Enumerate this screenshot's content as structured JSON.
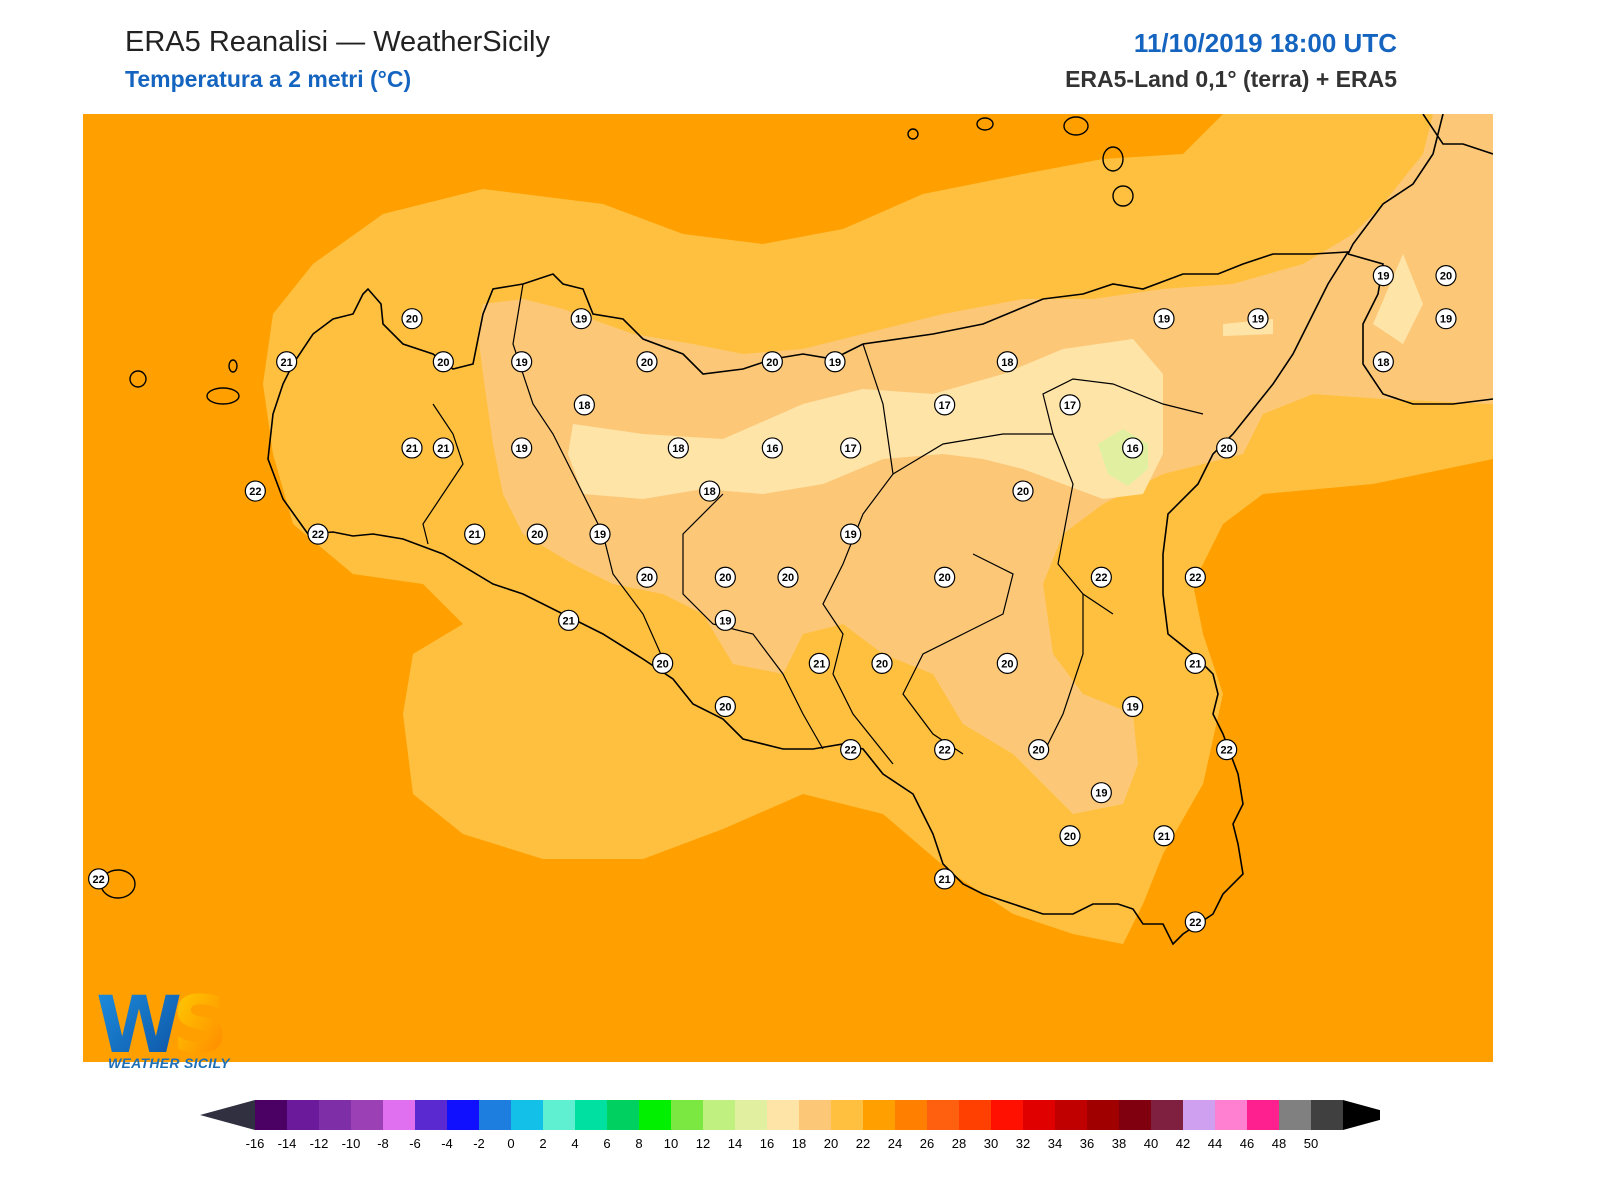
{
  "header": {
    "title": "ERA5 Reanalisi — WeatherSicily",
    "subtitle": "Temperatura a 2 metri (°C)",
    "datetime": "11/10/2019 18:00 UTC",
    "source": "ERA5-Land 0,1° (terra) + ERA5"
  },
  "logo": {
    "initials": "WS",
    "name": "WEATHER SICILY"
  },
  "colorbar": {
    "ticks": [
      "-16",
      "-14",
      "-12",
      "-10",
      "-8",
      "-6",
      "-4",
      "-2",
      "0",
      "2",
      "4",
      "6",
      "8",
      "10",
      "12",
      "14",
      "16",
      "18",
      "20",
      "22",
      "24",
      "26",
      "28",
      "30",
      "32",
      "34",
      "36",
      "38",
      "40",
      "42",
      "44",
      "46",
      "48",
      "50"
    ],
    "colors": [
      "#4b0063",
      "#6a1a9a",
      "#7e2fa8",
      "#9b40b5",
      "#e070f0",
      "#5a2ad0",
      "#1010ff",
      "#1e7ee0",
      "#12c0e8",
      "#5ef0d0",
      "#00e0a0",
      "#00d060",
      "#00f000",
      "#7ae840",
      "#c0f080",
      "#e0f0a0",
      "#ffe4a8",
      "#fcc878",
      "#ffc040",
      "#ffa000",
      "#ff8000",
      "#ff6010",
      "#ff4000",
      "#ff1000",
      "#e00000",
      "#c00000",
      "#a00000",
      "#800010",
      "#802040",
      "#d0a0f0",
      "#ff80d0",
      "#ff2090",
      "#808080",
      "#404040"
    ],
    "under_color": "#303040",
    "over_color": "#000000"
  },
  "colors": {
    "sea_warm": "#ffa000",
    "band_20_22": "#ffc040",
    "band_18_20": "#fcc878",
    "band_16_18": "#ffe4a8",
    "band_14_16": "#e0f0a0"
  },
  "stations": [
    {
      "v": "20",
      "x": 13.02,
      "y": 38.175
    },
    {
      "v": "19",
      "x": 13.56,
      "y": 38.175
    },
    {
      "v": "21",
      "x": 12.62,
      "y": 38.075
    },
    {
      "v": "20",
      "x": 13.12,
      "y": 38.075
    },
    {
      "v": "19",
      "x": 13.37,
      "y": 38.075
    },
    {
      "v": "20",
      "x": 13.77,
      "y": 38.075
    },
    {
      "v": "20",
      "x": 14.17,
      "y": 38.075
    },
    {
      "v": "19",
      "x": 14.37,
      "y": 38.075
    },
    {
      "v": "18",
      "x": 14.92,
      "y": 38.075
    },
    {
      "v": "19",
      "x": 15.42,
      "y": 38.175
    },
    {
      "v": "19",
      "x": 15.72,
      "y": 38.175
    },
    {
      "v": "19",
      "x": 16.12,
      "y": 38.275
    },
    {
      "v": "20",
      "x": 16.32,
      "y": 38.275
    },
    {
      "v": "19",
      "x": 16.32,
      "y": 38.175
    },
    {
      "v": "18",
      "x": 16.12,
      "y": 38.075
    },
    {
      "v": "18",
      "x": 13.57,
      "y": 37.975
    },
    {
      "v": "17",
      "x": 14.72,
      "y": 37.975
    },
    {
      "v": "17",
      "x": 15.12,
      "y": 37.975
    },
    {
      "v": "21",
      "x": 13.02,
      "y": 37.875
    },
    {
      "v": "21",
      "x": 13.12,
      "y": 37.875
    },
    {
      "v": "19",
      "x": 13.37,
      "y": 37.875
    },
    {
      "v": "18",
      "x": 13.87,
      "y": 37.875
    },
    {
      "v": "16",
      "x": 14.17,
      "y": 37.875
    },
    {
      "v": "17",
      "x": 14.42,
      "y": 37.875
    },
    {
      "v": "16",
      "x": 15.32,
      "y": 37.875
    },
    {
      "v": "20",
      "x": 15.62,
      "y": 37.875
    },
    {
      "v": "22",
      "x": 12.52,
      "y": 37.775
    },
    {
      "v": "18",
      "x": 13.97,
      "y": 37.775
    },
    {
      "v": "20",
      "x": 14.97,
      "y": 37.775
    },
    {
      "v": "22",
      "x": 12.72,
      "y": 37.675
    },
    {
      "v": "21",
      "x": 13.22,
      "y": 37.675
    },
    {
      "v": "20",
      "x": 13.42,
      "y": 37.675
    },
    {
      "v": "19",
      "x": 13.62,
      "y": 37.675
    },
    {
      "v": "19",
      "x": 14.42,
      "y": 37.675
    },
    {
      "v": "20",
      "x": 13.77,
      "y": 37.575
    },
    {
      "v": "20",
      "x": 14.02,
      "y": 37.575
    },
    {
      "v": "20",
      "x": 14.22,
      "y": 37.575
    },
    {
      "v": "20",
      "x": 14.72,
      "y": 37.575
    },
    {
      "v": "22",
      "x": 15.22,
      "y": 37.575
    },
    {
      "v": "22",
      "x": 15.52,
      "y": 37.575
    },
    {
      "v": "21",
      "x": 13.52,
      "y": 37.475
    },
    {
      "v": "19",
      "x": 14.02,
      "y": 37.475
    },
    {
      "v": "20",
      "x": 13.82,
      "y": 37.375
    },
    {
      "v": "21",
      "x": 14.32,
      "y": 37.375
    },
    {
      "v": "20",
      "x": 14.52,
      "y": 37.375
    },
    {
      "v": "20",
      "x": 14.92,
      "y": 37.375
    },
    {
      "v": "21",
      "x": 15.52,
      "y": 37.375
    },
    {
      "v": "20",
      "x": 14.02,
      "y": 37.275
    },
    {
      "v": "19",
      "x": 15.32,
      "y": 37.275
    },
    {
      "v": "22",
      "x": 14.42,
      "y": 37.175
    },
    {
      "v": "22",
      "x": 14.72,
      "y": 37.175
    },
    {
      "v": "20",
      "x": 15.02,
      "y": 37.175
    },
    {
      "v": "22",
      "x": 15.62,
      "y": 37.175
    },
    {
      "v": "19",
      "x": 15.22,
      "y": 37.075
    },
    {
      "v": "20",
      "x": 15.12,
      "y": 36.975
    },
    {
      "v": "21",
      "x": 15.42,
      "y": 36.975
    },
    {
      "v": "21",
      "x": 14.72,
      "y": 36.875
    },
    {
      "v": "22",
      "x": 15.52,
      "y": 36.775
    },
    {
      "v": "22",
      "x": 12.02,
      "y": 36.875
    }
  ]
}
